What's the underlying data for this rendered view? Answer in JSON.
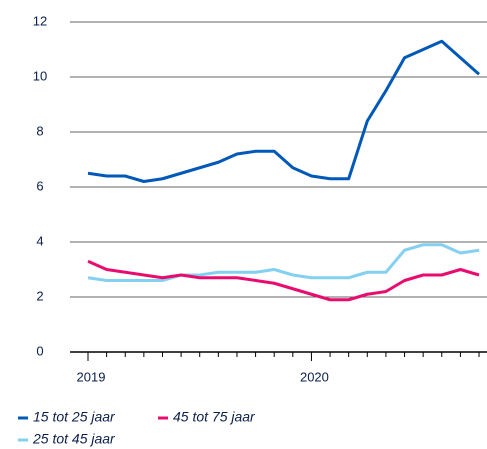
{
  "chart_data": {
    "type": "line",
    "categories": [
      "2019",
      null,
      null,
      null,
      null,
      null,
      null,
      null,
      null,
      null,
      null,
      null,
      "2020",
      null,
      null,
      null,
      null,
      null,
      null,
      null,
      null,
      null
    ],
    "series": [
      {
        "name": "15 tot 25 jaar",
        "color": "#0058b8",
        "values": [
          6.5,
          6.4,
          6.4,
          6.2,
          6.3,
          6.5,
          6.7,
          6.9,
          7.2,
          7.3,
          7.3,
          6.7,
          6.4,
          6.3,
          6.3,
          8.4,
          9.5,
          10.7,
          11.0,
          11.3,
          10.7,
          10.1
        ]
      },
      {
        "name": "25 tot 45 jaar",
        "color": "#84d0f0",
        "values": [
          2.7,
          2.6,
          2.6,
          2.6,
          2.6,
          2.8,
          2.8,
          2.9,
          2.9,
          2.9,
          3.0,
          2.8,
          2.7,
          2.7,
          2.7,
          2.9,
          2.9,
          3.7,
          3.9,
          3.9,
          3.6,
          3.7
        ]
      },
      {
        "name": "45 tot 75 jaar",
        "color": "#e90c6f",
        "values": [
          3.3,
          3.0,
          2.9,
          2.8,
          2.7,
          2.8,
          2.7,
          2.7,
          2.7,
          2.6,
          2.5,
          2.3,
          2.1,
          1.9,
          1.9,
          2.1,
          2.2,
          2.6,
          2.8,
          2.8,
          3.0,
          2.8
        ]
      }
    ],
    "ylim": [
      0,
      12
    ],
    "yticks": [
      0,
      2,
      4,
      6,
      8,
      10,
      12
    ],
    "grid": true
  }
}
